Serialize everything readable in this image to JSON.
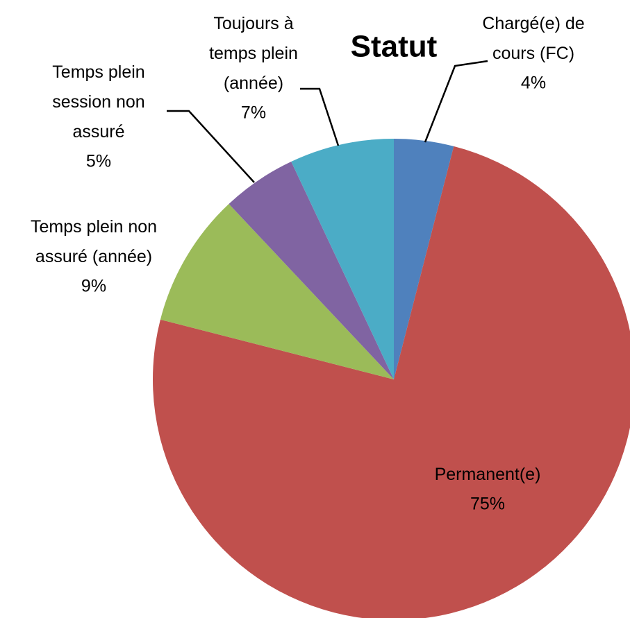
{
  "chart_data": {
    "type": "pie",
    "title": "Statut",
    "categories": [
      "Chargé(e) de cours (FC)",
      "Permanent(e)",
      "Temps plein non assuré (année)",
      "Temps plein session non assuré",
      "Toujours à temps plein (année)"
    ],
    "values": [
      4,
      75,
      9,
      5,
      7
    ],
    "value_labels": [
      "4%",
      "75%",
      "9%",
      "5%",
      "7%"
    ],
    "colors": [
      "#4f81bd",
      "#c0504d",
      "#9bbb59",
      "#8064a2",
      "#4bacc6"
    ]
  }
}
